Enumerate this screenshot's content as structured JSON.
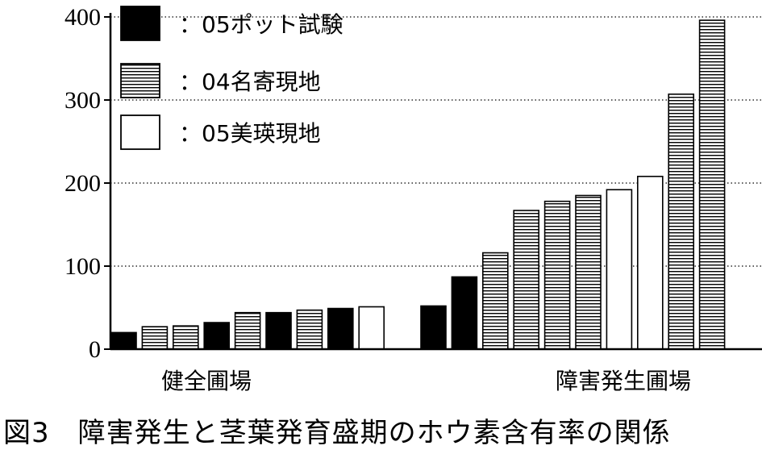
{
  "chart_data": {
    "type": "bar",
    "title": "図3　障害発生と茎葉発育盛期のホウ素含有率の関係",
    "ylim": [
      0,
      400
    ],
    "yticks": [
      0,
      100,
      200,
      300,
      400
    ],
    "grid": "horizontal dotted",
    "legend_placement": "top-left",
    "series": [
      {
        "name": "：05ポット試験",
        "color": "#000000",
        "pattern": "solid"
      },
      {
        "name": "：04名寄現地",
        "color": "#ffffff",
        "pattern": "horizontal-stripes"
      },
      {
        "name": "：05美瑛現地",
        "color": "#ffffff",
        "pattern": "white"
      }
    ],
    "groups": [
      {
        "label": "健全圃場",
        "bars": [
          {
            "series": 0,
            "value": 20
          },
          {
            "series": 1,
            "value": 27
          },
          {
            "series": 1,
            "value": 28
          },
          {
            "series": 0,
            "value": 32
          },
          {
            "series": 1,
            "value": 44
          },
          {
            "series": 0,
            "value": 44
          },
          {
            "series": 1,
            "value": 47
          },
          {
            "series": 0,
            "value": 49
          },
          {
            "series": 2,
            "value": 51
          }
        ]
      },
      {
        "label": "障害発生圃場",
        "bars": [
          {
            "series": 0,
            "value": 52
          },
          {
            "series": 0,
            "value": 87
          },
          {
            "series": 1,
            "value": 116
          },
          {
            "series": 1,
            "value": 167
          },
          {
            "series": 1,
            "value": 178
          },
          {
            "series": 1,
            "value": 185
          },
          {
            "series": 2,
            "value": 192
          },
          {
            "series": 2,
            "value": 208
          },
          {
            "series": 1,
            "value": 307
          },
          {
            "series": 1,
            "value": 396
          }
        ]
      }
    ]
  }
}
